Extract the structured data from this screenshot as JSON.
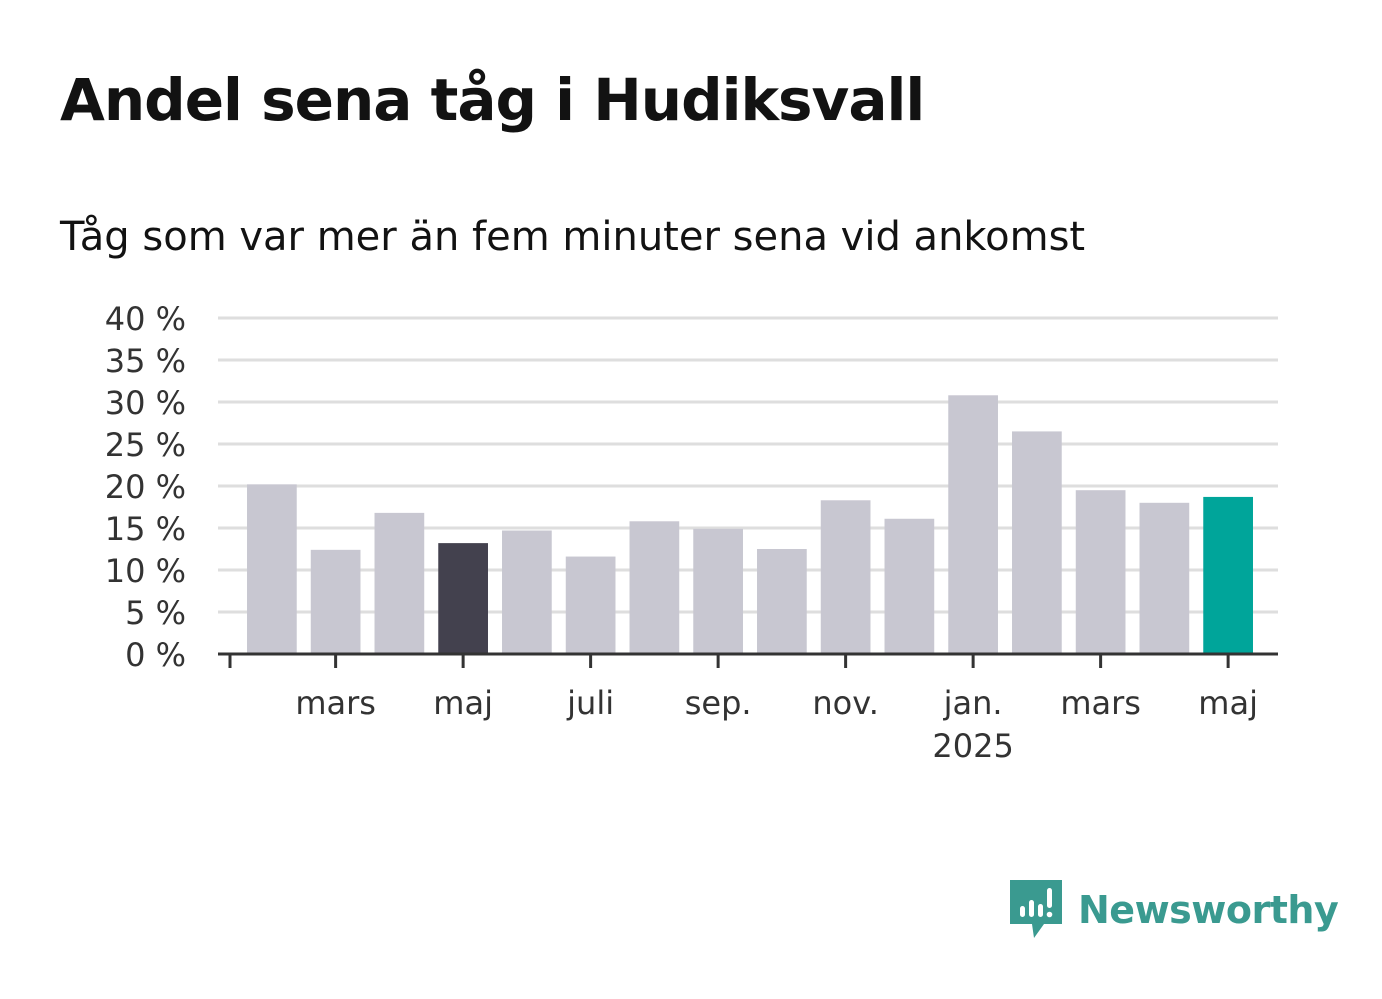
{
  "title": "Andel sena tåg i Hudiksvall",
  "subtitle": "Tåg som var mer än fem minuter sena vid ankomst",
  "brand": {
    "name": "Newsworthy",
    "color": "#3a9a90",
    "icon": "newsworthy-logo-icon"
  },
  "colors": {
    "bar": "#c8c7d1",
    "highlight_dark": "#43414e",
    "highlight_current": "#00a59a",
    "grid": "#dedede",
    "axis": "#333333"
  },
  "chart_data": {
    "type": "bar",
    "title": "Andel sena tåg i Hudiksvall",
    "subtitle": "Tåg som var mer än fem minuter sena vid ankomst",
    "xlabel": "",
    "ylabel": "",
    "ylim": [
      0,
      40
    ],
    "yticks": [
      0,
      5,
      10,
      15,
      20,
      25,
      30,
      35,
      40
    ],
    "ytick_labels": [
      "0 %",
      "5 %",
      "10 %",
      "15 %",
      "20 %",
      "25 %",
      "30 %",
      "35 %",
      "40 %"
    ],
    "categories": [
      "2024-02",
      "2024-03",
      "2024-04",
      "2024-05",
      "2024-06",
      "2024-07",
      "2024-08",
      "2024-09",
      "2024-10",
      "2024-11",
      "2024-12",
      "2025-01",
      "2025-02",
      "2025-03",
      "2025-04",
      "2025-05"
    ],
    "values": [
      20.2,
      12.4,
      16.8,
      13.2,
      14.7,
      11.6,
      15.8,
      14.9,
      12.5,
      18.3,
      16.1,
      30.8,
      26.5,
      19.5,
      18.0,
      18.7
    ],
    "bar_colors": [
      "#c8c7d1",
      "#c8c7d1",
      "#c8c7d1",
      "#43414e",
      "#c8c7d1",
      "#c8c7d1",
      "#c8c7d1",
      "#c8c7d1",
      "#c8c7d1",
      "#c8c7d1",
      "#c8c7d1",
      "#c8c7d1",
      "#c8c7d1",
      "#c8c7d1",
      "#c8c7d1",
      "#00a59a"
    ],
    "xticks": [
      {
        "category": "2024-03",
        "label": "mars",
        "sub": ""
      },
      {
        "category": "2024-05",
        "label": "maj",
        "sub": ""
      },
      {
        "category": "2024-07",
        "label": "juli",
        "sub": ""
      },
      {
        "category": "2024-09",
        "label": "sep.",
        "sub": ""
      },
      {
        "category": "2024-11",
        "label": "nov.",
        "sub": ""
      },
      {
        "category": "2025-01",
        "label": "jan.",
        "sub": "2025"
      },
      {
        "category": "2025-03",
        "label": "mars",
        "sub": ""
      },
      {
        "category": "2025-05",
        "label": "maj",
        "sub": ""
      }
    ],
    "grid": true,
    "legend": "none"
  }
}
